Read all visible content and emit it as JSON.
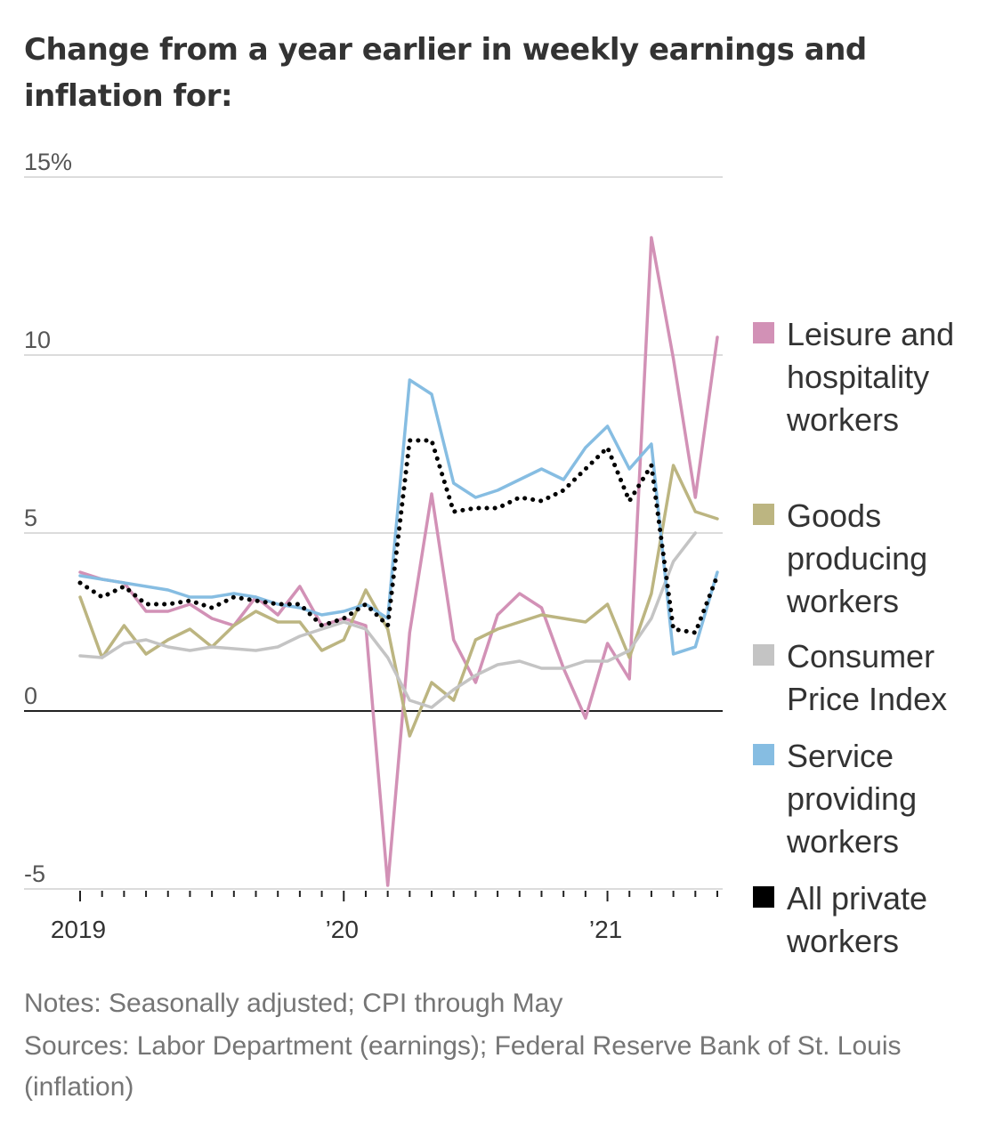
{
  "title": "Change from a year earlier in weekly earnings and inflation for:",
  "notes": "Notes: Seasonally adjusted; CPI through May",
  "sources": "Sources: Labor Department (earnings); Federal Reserve Bank of St. Louis (inflation)",
  "chart_data": {
    "type": "line",
    "y_tick_labels": [
      "15%",
      "10",
      "5",
      "0",
      "-5"
    ],
    "y_ticks": [
      15,
      10,
      5,
      0,
      -5
    ],
    "ylim": [
      -5,
      15
    ],
    "x_tick_labels": [
      {
        "label": "2019",
        "index": 0
      },
      {
        "label": "’20",
        "index": 12
      },
      {
        "label": "’21",
        "index": 24
      }
    ],
    "x_count": 30,
    "grid": true,
    "legend_position": "right",
    "series": [
      {
        "name": "Leisure and hospitality workers",
        "color": "#d291b6",
        "style": "solid",
        "values": [
          3.9,
          3.7,
          3.6,
          2.8,
          2.8,
          3.0,
          2.6,
          2.4,
          3.2,
          2.7,
          3.5,
          2.4,
          2.6,
          2.4,
          -4.9,
          2.2,
          6.1,
          2.0,
          0.8,
          2.7,
          3.3,
          2.9,
          1.2,
          -0.2,
          1.9,
          0.9,
          13.3,
          9.9,
          6.0,
          10.5
        ]
      },
      {
        "name": "Goods producing workers",
        "color": "#bcb581",
        "style": "solid",
        "values": [
          3.2,
          1.5,
          2.4,
          1.6,
          2.0,
          2.3,
          1.8,
          2.4,
          2.8,
          2.5,
          2.5,
          1.7,
          2.0,
          3.4,
          2.3,
          -0.7,
          0.8,
          0.3,
          2.0,
          2.3,
          2.5,
          2.7,
          2.6,
          2.5,
          3.0,
          1.5,
          3.3,
          6.9,
          5.6,
          5.4
        ]
      },
      {
        "name": "Consumer Price Index",
        "color": "#c4c4c4",
        "style": "solid",
        "values": [
          1.55,
          1.5,
          1.9,
          2.0,
          1.8,
          1.7,
          1.8,
          1.75,
          1.7,
          1.8,
          2.1,
          2.3,
          2.5,
          2.3,
          1.5,
          0.3,
          0.1,
          0.6,
          1.0,
          1.3,
          1.4,
          1.2,
          1.2,
          1.4,
          1.4,
          1.7,
          2.6,
          4.2,
          5.0,
          null
        ]
      },
      {
        "name": "Service providing workers",
        "color": "#86bde2",
        "style": "solid",
        "values": [
          3.8,
          3.7,
          3.6,
          3.5,
          3.4,
          3.2,
          3.2,
          3.3,
          3.2,
          3.0,
          2.9,
          2.7,
          2.8,
          3.0,
          2.6,
          9.3,
          8.9,
          6.4,
          6.0,
          6.2,
          6.5,
          6.8,
          6.5,
          7.4,
          8.0,
          6.8,
          7.5,
          1.6,
          1.8,
          3.9
        ]
      },
      {
        "name": "All private workers",
        "color": "#000000",
        "style": "dotted",
        "values": [
          3.6,
          3.2,
          3.5,
          3.0,
          3.0,
          3.1,
          2.9,
          3.2,
          3.1,
          3.0,
          3.0,
          2.4,
          2.6,
          3.0,
          2.4,
          7.6,
          7.6,
          5.6,
          5.7,
          5.7,
          6.0,
          5.9,
          6.2,
          6.8,
          7.4,
          5.9,
          6.9,
          2.3,
          2.2,
          3.8
        ]
      }
    ]
  }
}
